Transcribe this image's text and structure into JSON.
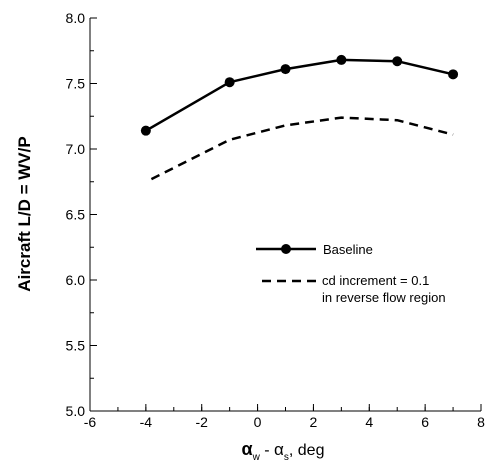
{
  "chart_data": {
    "type": "line",
    "xlabel": {
      "alpha_w": "α",
      "sub_w": "w",
      "dash": " - ",
      "alpha_s": "α",
      "sub_s": "s",
      "unit": ", deg"
    },
    "ylabel": "Aircraft L/D = WV/P",
    "xlim": [
      -6,
      8
    ],
    "ylim": [
      5.0,
      8.0
    ],
    "xticks": [
      "-6",
      "-4",
      "-2",
      "0",
      "2",
      "4",
      "6",
      "8"
    ],
    "yticks": [
      "5.0",
      "5.5",
      "6.0",
      "6.5",
      "7.0",
      "7.5",
      "8.0"
    ],
    "x_minor_step": 1,
    "y_minor_step": 0.25,
    "grid": false,
    "legend_position": "center-right",
    "series": [
      {
        "name": "Baseline",
        "style": "solid-with-markers",
        "color": "#000000",
        "points": [
          [
            -4,
            7.14
          ],
          [
            -1,
            7.51
          ],
          [
            1,
            7.61
          ],
          [
            3,
            7.68
          ],
          [
            5,
            7.67
          ],
          [
            7,
            7.57
          ]
        ]
      },
      {
        "name": "cd increment = 0.1",
        "name_line2": "in reverse flow region",
        "style": "dashed",
        "color": "#000000",
        "points": [
          [
            -3.8,
            6.77
          ],
          [
            -1,
            7.07
          ],
          [
            1,
            7.18
          ],
          [
            3,
            7.24
          ],
          [
            5,
            7.22
          ],
          [
            7,
            7.11
          ]
        ]
      }
    ]
  }
}
